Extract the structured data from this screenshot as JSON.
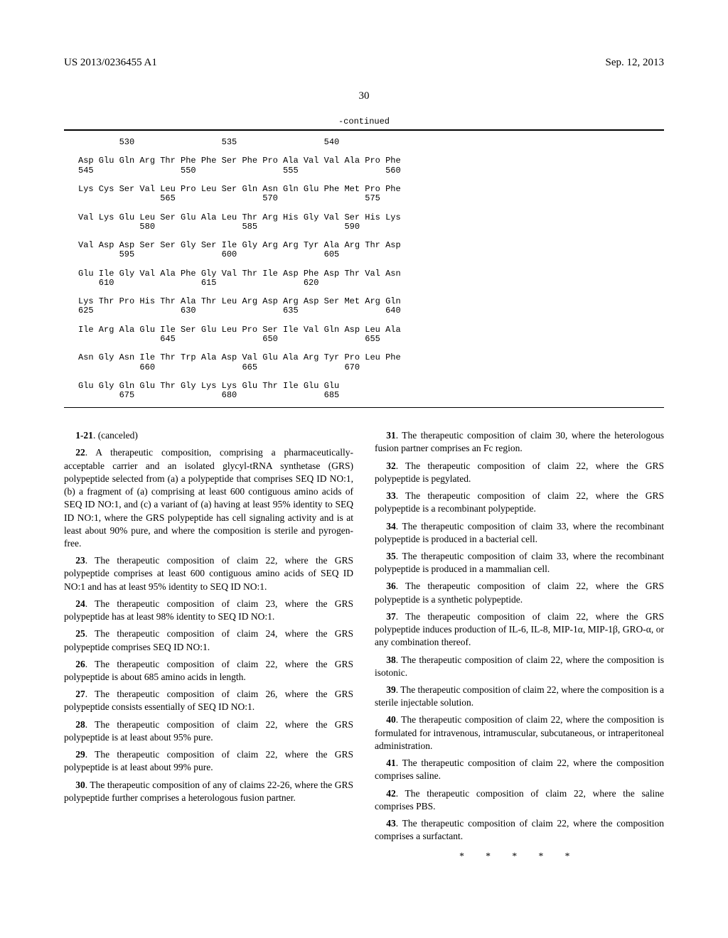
{
  "header": {
    "pub_number": "US 2013/0236455 A1",
    "date": "Sep. 12, 2013"
  },
  "page_number": "30",
  "continued_label": "-continued",
  "sequence": "        530                 535                 540\n\nAsp Glu Gln Arg Thr Phe Phe Ser Phe Pro Ala Val Val Ala Pro Phe\n545                 550                 555                 560\n\nLys Cys Ser Val Leu Pro Leu Ser Gln Asn Gln Glu Phe Met Pro Phe\n                565                 570                 575\n\nVal Lys Glu Leu Ser Glu Ala Leu Thr Arg His Gly Val Ser His Lys\n            580                 585                 590\n\nVal Asp Asp Ser Ser Gly Ser Ile Gly Arg Arg Tyr Ala Arg Thr Asp\n        595                 600                 605\n\nGlu Ile Gly Val Ala Phe Gly Val Thr Ile Asp Phe Asp Thr Val Asn\n    610                 615                 620\n\nLys Thr Pro His Thr Ala Thr Leu Arg Asp Arg Asp Ser Met Arg Gln\n625                 630                 635                 640\n\nIle Arg Ala Glu Ile Ser Glu Leu Pro Ser Ile Val Gln Asp Leu Ala\n                645                 650                 655\n\nAsn Gly Asn Ile Thr Trp Ala Asp Val Glu Ala Arg Tyr Pro Leu Phe\n            660                 665                 670\n\nGlu Gly Gln Glu Thr Gly Lys Lys Glu Thr Ile Glu Glu\n        675                 680                 685",
  "claims_left": [
    {
      "n": "1-21",
      "text": ". (canceled)"
    },
    {
      "n": "22",
      "text": ". A therapeutic composition, comprising a pharmaceutically-acceptable carrier and an isolated glycyl-tRNA synthetase (GRS) polypeptide selected from (a) a polypeptide that comprises SEQ ID NO:1, (b) a fragment of (a) comprising at least 600 contiguous amino acids of SEQ ID NO:1, and (c) a variant of (a) having at least 95% identity to SEQ ID NO:1, where the GRS polypeptide has cell signaling activity and is at least about 90% pure, and where the composition is sterile and pyrogen-free."
    },
    {
      "n": "23",
      "text": ". The therapeutic composition of claim 22, where the GRS polypeptide comprises at least 600 contiguous amino acids of SEQ ID NO:1 and has at least 95% identity to SEQ ID NO:1."
    },
    {
      "n": "24",
      "text": ". The therapeutic composition of claim 23, where the GRS polypeptide has at least 98% identity to SEQ ID NO:1."
    },
    {
      "n": "25",
      "text": ". The therapeutic composition of claim 24, where the GRS polypeptide comprises SEQ ID NO:1."
    },
    {
      "n": "26",
      "text": ". The therapeutic composition of claim 22, where the GRS polypeptide is about 685 amino acids in length."
    },
    {
      "n": "27",
      "text": ". The therapeutic composition of claim 26, where the GRS polypeptide consists essentially of SEQ ID NO:1."
    },
    {
      "n": "28",
      "text": ". The therapeutic composition of claim 22, where the GRS polypeptide is at least about 95% pure."
    },
    {
      "n": "29",
      "text": ". The therapeutic composition of claim 22, where the GRS polypeptide is at least about 99% pure."
    },
    {
      "n": "30",
      "text": ". The therapeutic composition of any of claims 22-26, where the GRS polypeptide further comprises a heterologous fusion partner."
    }
  ],
  "claims_right": [
    {
      "n": "31",
      "text": ". The therapeutic composition of claim 30, where the heterologous fusion partner comprises an Fc region."
    },
    {
      "n": "32",
      "text": ". The therapeutic composition of claim 22, where the GRS polypeptide is pegylated."
    },
    {
      "n": "33",
      "text": ". The therapeutic composition of claim 22, where the GRS polypeptide is a recombinant polypeptide."
    },
    {
      "n": "34",
      "text": ". The therapeutic composition of claim 33, where the recombinant polypeptide is produced in a bacterial cell."
    },
    {
      "n": "35",
      "text": ". The therapeutic composition of claim 33, where the recombinant polypeptide is produced in a mammalian cell."
    },
    {
      "n": "36",
      "text": ". The therapeutic composition of claim 22, where the GRS polypeptide is a synthetic polypeptide."
    },
    {
      "n": "37",
      "text": ". The therapeutic composition of claim 22, where the GRS polypeptide induces production of IL-6, IL-8, MIP-1α, MIP-1β, GRO-α, or any combination thereof."
    },
    {
      "n": "38",
      "text": ". The therapeutic composition of claim 22, where the composition is isotonic."
    },
    {
      "n": "39",
      "text": ". The therapeutic composition of claim 22, where the composition is a sterile injectable solution."
    },
    {
      "n": "40",
      "text": ". The therapeutic composition of claim 22, where the composition is formulated for intravenous, intramuscular, subcutaneous, or intraperitoneal administration."
    },
    {
      "n": "41",
      "text": ". The therapeutic composition of claim 22, where the composition comprises saline."
    },
    {
      "n": "42",
      "text": ". The therapeutic composition of claim 22, where the saline comprises PBS."
    },
    {
      "n": "43",
      "text": ". The therapeutic composition of claim 22, where the composition comprises a surfactant."
    }
  ],
  "endmark": "* * * * *"
}
